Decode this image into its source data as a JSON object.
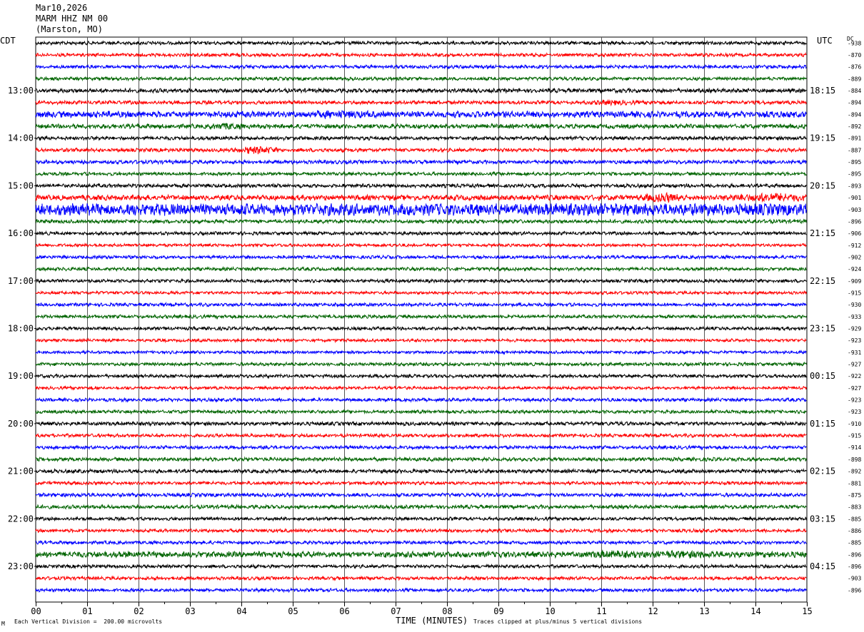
{
  "header": {
    "date": "Mar10,2026",
    "station": "MARM HHZ NM 00",
    "location": "(Marston, MO)"
  },
  "left_zone": "CDT",
  "right_zone": "UTC",
  "dc_label": "DC",
  "footer": {
    "corner_mark": "M",
    "scale_note": "Each Vertical Division =  200.00 microvolts",
    "xlabel": "TIME (MINUTES)",
    "clip_note": "Traces clipped at plus/minus 5 vertical divisions"
  },
  "colors": {
    "black": "#000000",
    "red": "#ff0000",
    "blue": "#0000ff",
    "green": "#006400",
    "grid": "#000000"
  },
  "chart_data": {
    "type": "line",
    "title": "",
    "xlabel": "TIME (MINUTES)",
    "xlim": [
      0,
      15
    ],
    "xticks": [
      "00",
      "01",
      "02",
      "03",
      "04",
      "05",
      "06",
      "07",
      "08",
      "09",
      "10",
      "11",
      "12",
      "13",
      "14",
      "15"
    ],
    "row_minutes": 15,
    "color_cycle": [
      "black",
      "red",
      "blue",
      "green"
    ],
    "left_hour_labels": [
      "13:00",
      "14:00",
      "15:00",
      "16:00",
      "17:00",
      "18:00",
      "19:00",
      "20:00",
      "21:00",
      "22:00",
      "23:00"
    ],
    "right_hour_labels": [
      "18:15",
      "19:15",
      "20:15",
      "21:15",
      "22:15",
      "23:15",
      "00:15",
      "01:15",
      "02:15",
      "03:15",
      "04:15"
    ],
    "dc_offsets": [
      -938,
      -870,
      -876,
      -889,
      -884,
      -894,
      -894,
      -892,
      -891,
      -887,
      -895,
      -895,
      -893,
      -901,
      -903,
      -896,
      -906,
      -912,
      -902,
      -924,
      -909,
      -915,
      -930,
      -933,
      -929,
      -923,
      -931,
      -927,
      -922,
      -927,
      -923,
      -923,
      -910,
      -915,
      -914,
      -898,
      -892,
      -881,
      -875,
      -883,
      -885,
      -886,
      -885,
      -896,
      -896,
      -903,
      -896
    ],
    "amplitudes": [
      0.9,
      0.9,
      0.9,
      0.9,
      1.1,
      1.0,
      1.7,
      1.2,
      1.0,
      1.0,
      1.0,
      0.9,
      1.0,
      1.4,
      3.2,
      1.0,
      0.9,
      0.8,
      0.9,
      0.9,
      0.9,
      0.8,
      0.9,
      0.9,
      0.9,
      0.8,
      0.8,
      0.9,
      0.9,
      0.8,
      0.9,
      0.9,
      1.0,
      0.9,
      0.9,
      1.0,
      1.0,
      0.9,
      1.0,
      1.0,
      0.9,
      0.9,
      0.9,
      1.6,
      0.9,
      0.9,
      0.9
    ],
    "events": [
      {
        "row": 5,
        "minute": 11.2,
        "width": 0.6,
        "gain": 1.6
      },
      {
        "row": 6,
        "minute": 5.9,
        "width": 0.7,
        "gain": 2.4
      },
      {
        "row": 7,
        "minute": 3.7,
        "width": 0.4,
        "gain": 2.2
      },
      {
        "row": 9,
        "minute": 4.3,
        "width": 0.5,
        "gain": 2.4
      },
      {
        "row": 13,
        "minute": 12.2,
        "width": 0.5,
        "gain": 3.0
      },
      {
        "row": 13,
        "minute": 14.3,
        "width": 1.2,
        "gain": 2.6
      },
      {
        "row": 14,
        "minute": 2.2,
        "width": 2.5,
        "gain": 1.5
      },
      {
        "row": 43,
        "minute": 11.2,
        "width": 0.6,
        "gain": 2.2
      },
      {
        "row": 43,
        "minute": 12.6,
        "width": 1.0,
        "gain": 2.2
      }
    ]
  }
}
